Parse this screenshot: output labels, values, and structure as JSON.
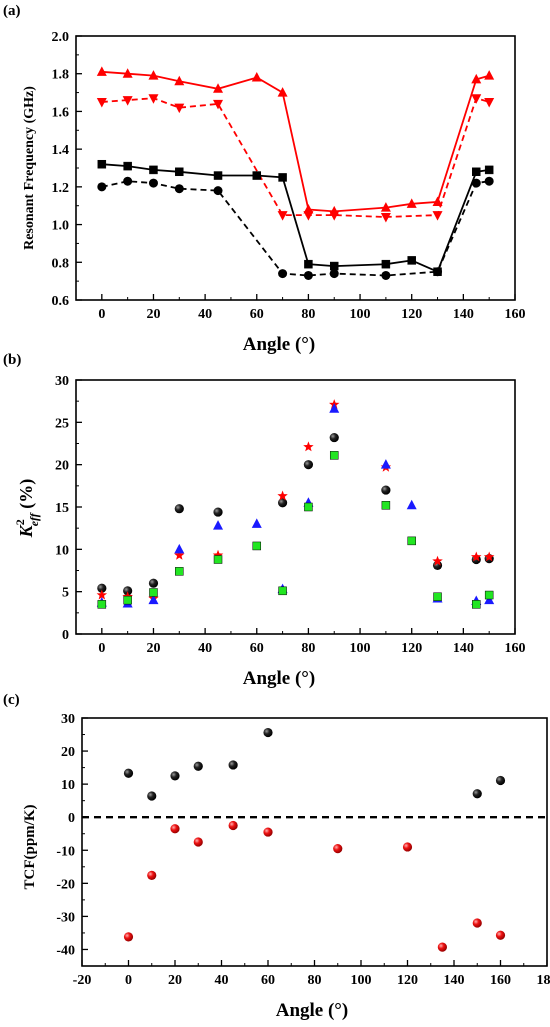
{
  "chart_data": [
    {
      "type": "line",
      "panel_label": "(a)",
      "xlabel": "Angle (°)",
      "ylabel": "Resonant Frequency (GHz)",
      "xlim": [
        -10,
        160
      ],
      "ylim": [
        0.6,
        2.0
      ],
      "xticks": [
        0,
        20,
        40,
        60,
        80,
        100,
        120,
        140,
        160
      ],
      "yticks": [
        0.6,
        0.8,
        1.0,
        1.2,
        1.4,
        1.6,
        1.8,
        2.0
      ],
      "ytick_decimals": 1,
      "grid": false,
      "series": [
        {
          "color": "#ff0000",
          "marker": "triangle-up",
          "dash": false,
          "x": [
            0,
            10,
            20,
            30,
            45,
            60,
            70,
            80,
            90,
            110,
            120,
            130,
            145,
            150
          ],
          "y": [
            1.81,
            1.8,
            1.79,
            1.76,
            1.72,
            1.78,
            1.7,
            1.08,
            1.07,
            1.09,
            1.11,
            1.12,
            1.77,
            1.79
          ]
        },
        {
          "color": "#ff0000",
          "marker": "triangle-down",
          "dash": true,
          "x": [
            0,
            10,
            20,
            30,
            45,
            70,
            80,
            90,
            110,
            130,
            145,
            150
          ],
          "y": [
            1.65,
            1.66,
            1.67,
            1.62,
            1.64,
            1.05,
            1.05,
            1.05,
            1.04,
            1.05,
            1.67,
            1.65
          ]
        },
        {
          "color": "#000000",
          "marker": "square",
          "dash": false,
          "x": [
            0,
            10,
            20,
            30,
            45,
            60,
            70,
            80,
            90,
            110,
            120,
            130,
            145,
            150
          ],
          "y": [
            1.32,
            1.31,
            1.29,
            1.28,
            1.26,
            1.26,
            1.25,
            0.79,
            0.78,
            0.79,
            0.81,
            0.75,
            1.28,
            1.29
          ]
        },
        {
          "color": "#000000",
          "marker": "circle",
          "dash": true,
          "x": [
            0,
            10,
            20,
            30,
            45,
            70,
            80,
            90,
            110,
            130,
            145,
            150
          ],
          "y": [
            1.2,
            1.23,
            1.22,
            1.19,
            1.18,
            0.74,
            0.73,
            0.74,
            0.73,
            0.75,
            1.22,
            1.23
          ]
        }
      ]
    },
    {
      "type": "scatter",
      "panel_label": "(b)",
      "xlabel": "Angle (°)",
      "ylabel": "K2eff (%)",
      "ylabel_parts": {
        "main": "K",
        "sup": "2",
        "sub": "eff",
        "rest": " (%)"
      },
      "xlim": [
        -10,
        160
      ],
      "ylim": [
        0,
        30
      ],
      "xticks": [
        0,
        20,
        40,
        60,
        80,
        100,
        120,
        140,
        160
      ],
      "yticks": [
        0,
        5,
        10,
        15,
        20,
        25,
        30
      ],
      "ytick_decimals": 0,
      "grid": false,
      "series": [
        {
          "color": "#1a1a1a",
          "marker": "ball",
          "x": [
            0,
            10,
            20,
            30,
            45,
            70,
            80,
            90,
            110,
            130,
            145,
            150
          ],
          "y": [
            5.4,
            5.1,
            6.0,
            14.8,
            14.4,
            15.5,
            20.0,
            23.2,
            17.0,
            8.1,
            8.8,
            8.9
          ]
        },
        {
          "color": "#ff0000",
          "marker": "star",
          "x": [
            0,
            10,
            20,
            30,
            45,
            70,
            80,
            90,
            110,
            130,
            145,
            150
          ],
          "y": [
            4.6,
            4.4,
            4.2,
            9.3,
            9.3,
            16.3,
            22.1,
            27.1,
            19.7,
            8.6,
            9.1,
            9.1
          ]
        },
        {
          "color": "#1a1aff",
          "marker": "triangle-up",
          "x": [
            0,
            10,
            20,
            30,
            45,
            60,
            70,
            80,
            90,
            110,
            120,
            130,
            145,
            150
          ],
          "y": [
            3.7,
            3.6,
            4.0,
            10.0,
            12.8,
            13.0,
            5.3,
            15.5,
            26.6,
            20.0,
            15.2,
            4.2,
            3.9,
            4.0
          ]
        },
        {
          "color": "#22e622",
          "marker": "square",
          "x": [
            0,
            10,
            20,
            30,
            45,
            60,
            70,
            80,
            90,
            110,
            120,
            130,
            145,
            150
          ],
          "y": [
            3.5,
            4.0,
            4.9,
            7.4,
            8.8,
            10.4,
            5.1,
            15.0,
            21.1,
            15.2,
            11.0,
            4.4,
            3.5,
            4.6
          ]
        }
      ]
    },
    {
      "type": "scatter",
      "panel_label": "(c)",
      "xlabel": "Angle (°)",
      "ylabel": "TCF(ppm/K)",
      "xlim": [
        -20,
        180
      ],
      "ylim": [
        -45,
        30
      ],
      "xticks": [
        -20,
        0,
        20,
        40,
        60,
        80,
        100,
        120,
        140,
        160,
        180
      ],
      "yticks": [
        -40,
        -30,
        -20,
        -10,
        0,
        10,
        20,
        30
      ],
      "ytick_decimals": 0,
      "grid": false,
      "reference_line_y": 0,
      "series": [
        {
          "color": "#1a1a1a",
          "marker": "ball",
          "x": [
            0,
            10,
            20,
            30,
            45,
            60,
            150,
            160
          ],
          "y": [
            13.3,
            6.4,
            12.5,
            15.4,
            15.8,
            25.6,
            7.1,
            11.1
          ]
        },
        {
          "color": "#ee1111",
          "marker": "ball",
          "x": [
            0,
            10,
            20,
            30,
            45,
            60,
            90,
            120,
            135,
            150,
            160
          ],
          "y": [
            -36.2,
            -17.6,
            -3.5,
            -7.5,
            -2.5,
            -4.5,
            -9.5,
            -9.0,
            -39.3,
            -32.0,
            -35.7
          ]
        }
      ]
    }
  ]
}
